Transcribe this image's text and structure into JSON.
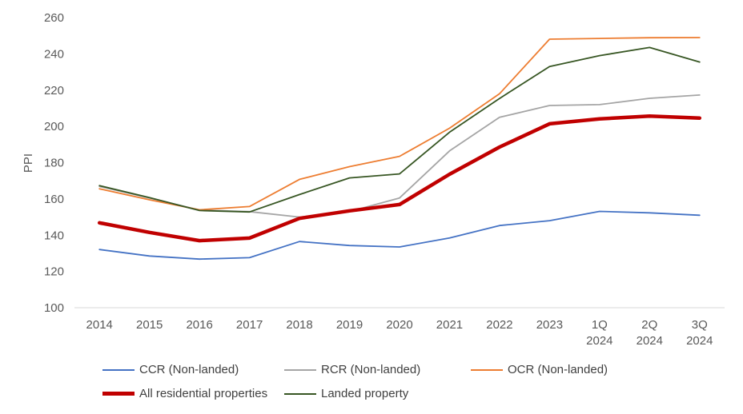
{
  "chart_data": {
    "type": "line",
    "title": "",
    "xlabel": "",
    "ylabel": "PPI",
    "ylim": [
      100,
      260
    ],
    "yticks": [
      100,
      120,
      140,
      160,
      180,
      200,
      220,
      240,
      260
    ],
    "grid": false,
    "legend_position": "bottom",
    "categories": [
      [
        "2014"
      ],
      [
        "2015"
      ],
      [
        "2016"
      ],
      [
        "2017"
      ],
      [
        "2018"
      ],
      [
        "2019"
      ],
      [
        "2020"
      ],
      [
        "2021"
      ],
      [
        "2022"
      ],
      [
        "2023"
      ],
      [
        "1Q",
        "2024"
      ],
      [
        "2Q",
        "2024"
      ],
      [
        "3Q",
        "2024"
      ]
    ],
    "series": [
      {
        "name": "CCR (Non-landed)",
        "color": "#4472C4",
        "values": [
          132.1,
          128.5,
          126.8,
          127.6,
          136.5,
          134.3,
          133.5,
          138.5,
          145.3,
          148.0,
          153.1,
          152.3,
          151.0
        ]
      },
      {
        "name": "RCR  (Non-landed)",
        "color": "#A5A5A5",
        "values": [
          166.9,
          160.5,
          153.8,
          153.0,
          150.0,
          153.0,
          160.5,
          186.5,
          205.0,
          211.5,
          212.0,
          215.5,
          217.3
        ]
      },
      {
        "name": "OCR  (Non-landed)",
        "color": "#ED7D31",
        "values": [
          165.6,
          159.5,
          154.0,
          155.8,
          170.8,
          177.8,
          183.5,
          199.0,
          218.0,
          248.1,
          248.5,
          248.9,
          249.0
        ]
      },
      {
        "name": "All residential properties",
        "color": "#C00000",
        "values": [
          146.8,
          141.5,
          137.0,
          138.4,
          149.3,
          153.4,
          156.9,
          173.6,
          188.6,
          201.4,
          204.1,
          205.7,
          204.6
        ]
      },
      {
        "name": "Landed property",
        "color": "#375623",
        "values": [
          167.3,
          160.7,
          153.6,
          152.8,
          162.4,
          171.6,
          173.8,
          196.8,
          215.4,
          233.0,
          239.0,
          243.5,
          235.5
        ]
      }
    ]
  }
}
